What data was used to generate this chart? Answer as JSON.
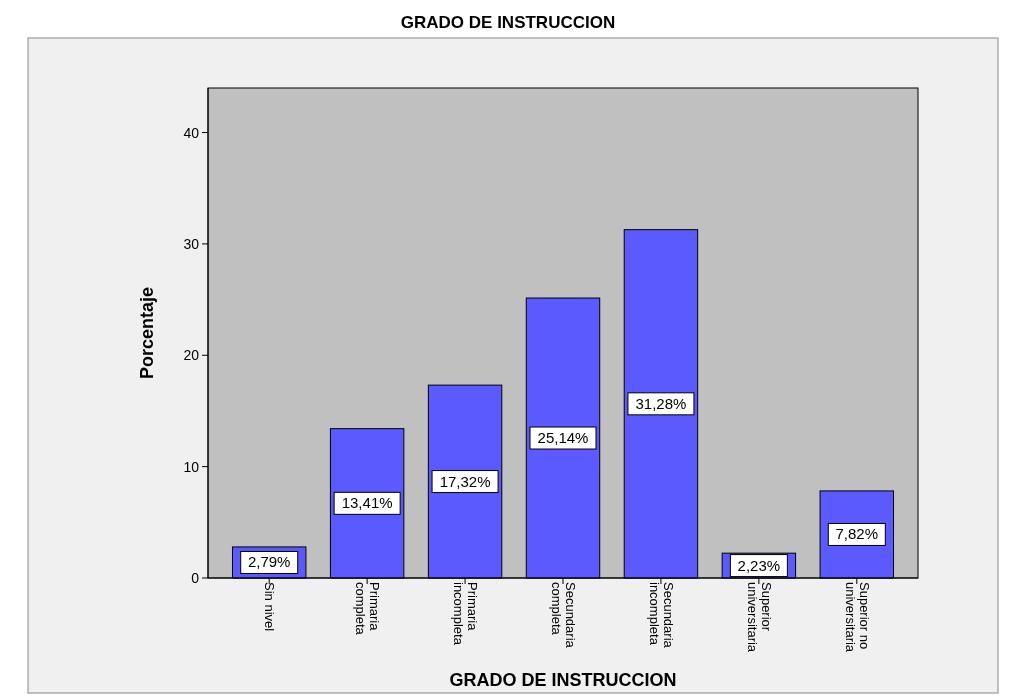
{
  "chart_data": {
    "type": "bar",
    "title": "GRADO DE INSTRUCCION",
    "xlabel": "GRADO DE INSTRUCCION",
    "ylabel": "Porcentaje",
    "categories": [
      "Sin nivel",
      "Primaria\ncompleta",
      "Primaria\nincompleta",
      "Secundaria\ncompleta",
      "Secundaria\nincompleta",
      "Superior\nuniversitaria",
      "Superior no\nuniversitaria"
    ],
    "values": [
      2.79,
      13.41,
      17.32,
      25.14,
      31.28,
      2.23,
      7.82
    ],
    "value_labels": [
      "2,79%",
      "13,41%",
      "17,32%",
      "25,14%",
      "31,28%",
      "2,23%",
      "7,82%"
    ],
    "color": "#5a5aff",
    "ylim": [
      0,
      44
    ],
    "yticks": [
      0,
      10,
      20,
      30,
      40
    ],
    "grid": false
  }
}
